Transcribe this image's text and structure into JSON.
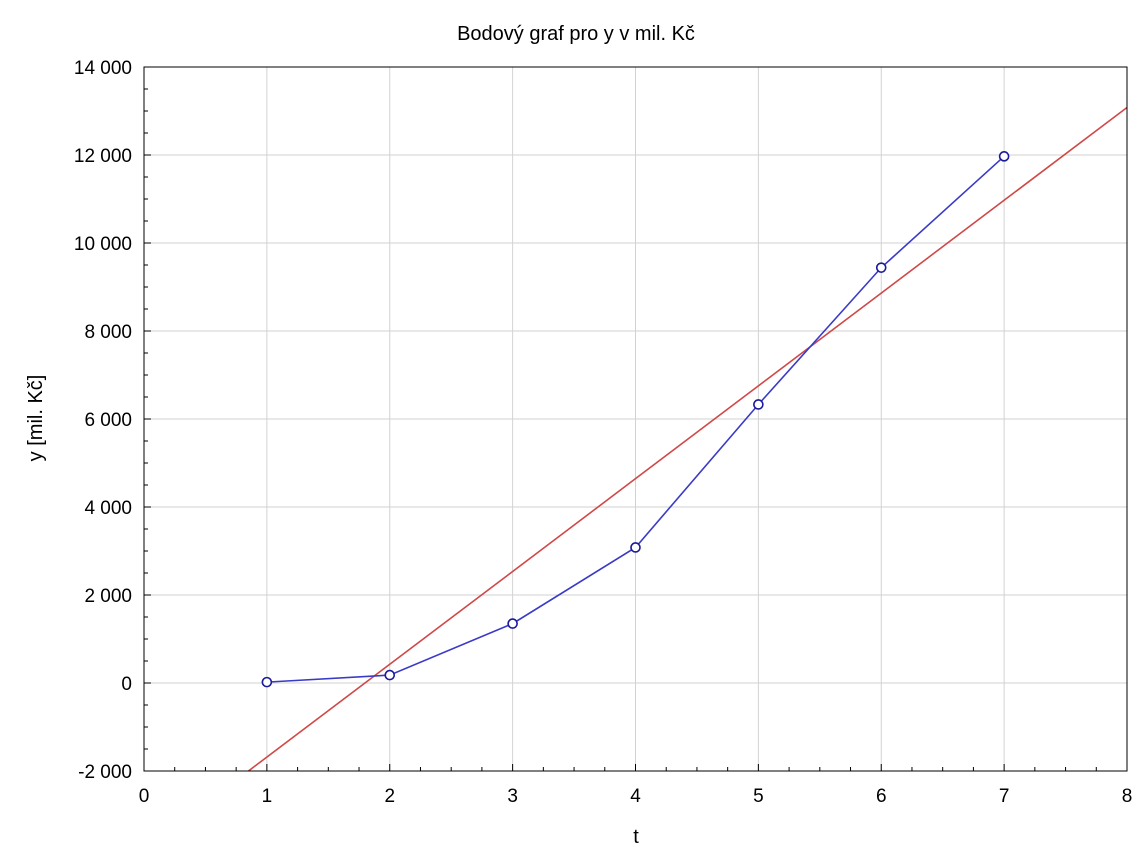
{
  "chart_data": {
    "type": "scatter",
    "title": "Bodový graf pro y v mil. Kč",
    "xlabel": "t",
    "ylabel": "y [mil. Kč]",
    "xlim": [
      0,
      8
    ],
    "ylim": [
      -2000,
      14000
    ],
    "x_ticks": [
      0,
      1,
      2,
      3,
      4,
      5,
      6,
      7,
      8
    ],
    "x_tick_labels": [
      "0",
      "1",
      "2",
      "3",
      "4",
      "5",
      "6",
      "7",
      "8"
    ],
    "y_ticks": [
      -2000,
      0,
      2000,
      4000,
      6000,
      8000,
      10000,
      12000,
      14000
    ],
    "y_tick_labels": [
      "-2 000",
      "0",
      "2 000",
      "4 000",
      "6 000",
      "8 000",
      "10 000",
      "12 000",
      "14 000"
    ],
    "grid": true,
    "series": [
      {
        "type": "line+markers",
        "color": "#3a3ac8",
        "x": [
          1,
          2,
          3,
          4,
          5,
          6,
          7
        ],
        "y": [
          20,
          180,
          1350,
          3080,
          6330,
          9440,
          11970
        ]
      },
      {
        "type": "trend-line",
        "color": "#d04848",
        "x": [
          0.85,
          8
        ],
        "y": [
          -2000,
          13080
        ]
      }
    ]
  }
}
